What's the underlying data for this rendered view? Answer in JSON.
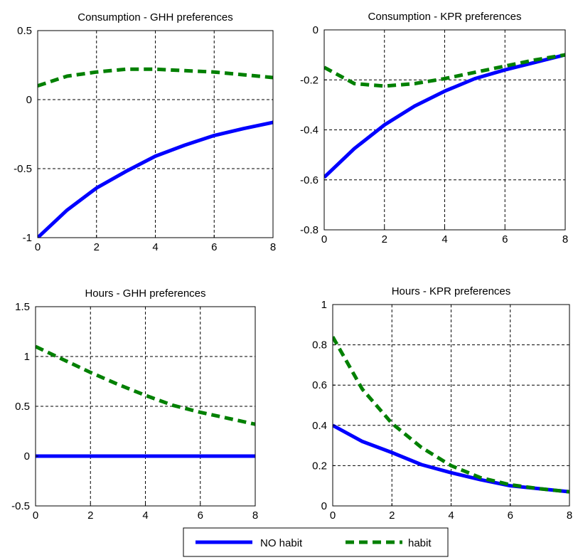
{
  "chart_data": [
    {
      "type": "line",
      "title": "Consumption  - GHH preferences",
      "xlabel": "",
      "ylabel": "",
      "xlim": [
        0,
        8
      ],
      "ylim": [
        -1,
        0.5
      ],
      "xticks": [
        0,
        2,
        4,
        6,
        8
      ],
      "yticks": [
        -1,
        -0.5,
        0,
        0.5
      ],
      "ytick_labels": [
        "-1",
        "-0.5",
        "0",
        "0.5"
      ],
      "grid": true,
      "x": [
        0,
        1,
        2,
        3,
        4,
        5,
        6,
        7,
        8
      ],
      "series": [
        {
          "name": "NO habit",
          "values": [
            -1.0,
            -0.8,
            -0.64,
            -0.52,
            -0.41,
            -0.33,
            -0.26,
            -0.21,
            -0.165
          ]
        },
        {
          "name": "habit",
          "values": [
            0.1,
            0.17,
            0.2,
            0.22,
            0.22,
            0.21,
            0.2,
            0.18,
            0.16
          ]
        }
      ]
    },
    {
      "type": "line",
      "title": "Consumption  - KPR preferences",
      "xlabel": "",
      "ylabel": "",
      "xlim": [
        0,
        8
      ],
      "ylim": [
        -0.8,
        0
      ],
      "xticks": [
        0,
        2,
        4,
        6,
        8
      ],
      "yticks": [
        -0.8,
        -0.6,
        -0.4,
        -0.2,
        0
      ],
      "ytick_labels": [
        "-0.8",
        "-0.6",
        "-0.4",
        "-0.2",
        "0"
      ],
      "grid": true,
      "x": [
        0,
        1,
        2,
        3,
        4,
        5,
        6,
        7,
        8
      ],
      "series": [
        {
          "name": "NO habit",
          "values": [
            -0.59,
            -0.475,
            -0.38,
            -0.305,
            -0.245,
            -0.195,
            -0.16,
            -0.13,
            -0.1
          ]
        },
        {
          "name": "habit",
          "values": [
            -0.15,
            -0.215,
            -0.225,
            -0.215,
            -0.195,
            -0.17,
            -0.145,
            -0.12,
            -0.1
          ]
        }
      ]
    },
    {
      "type": "line",
      "title": "Hours - GHH preferences",
      "xlabel": "",
      "ylabel": "",
      "xlim": [
        0,
        8
      ],
      "ylim": [
        -0.5,
        1.5
      ],
      "xticks": [
        0,
        2,
        4,
        6,
        8
      ],
      "yticks": [
        -0.5,
        0,
        0.5,
        1,
        1.5
      ],
      "ytick_labels": [
        "-0.5",
        "0",
        "0.5",
        "1",
        "1.5"
      ],
      "grid": true,
      "x": [
        0,
        1,
        2,
        3,
        4,
        5,
        6,
        7,
        8
      ],
      "series": [
        {
          "name": "NO habit",
          "values": [
            0,
            0,
            0,
            0,
            0,
            0,
            0,
            0,
            0
          ]
        },
        {
          "name": "habit",
          "values": [
            1.1,
            0.97,
            0.84,
            0.72,
            0.61,
            0.51,
            0.44,
            0.38,
            0.32
          ]
        }
      ]
    },
    {
      "type": "line",
      "title": "Hours - KPR preferences",
      "xlabel": "",
      "ylabel": "",
      "xlim": [
        0,
        8
      ],
      "ylim": [
        0,
        1
      ],
      "xticks": [
        0,
        2,
        4,
        6,
        8
      ],
      "yticks": [
        0,
        0.2,
        0.4,
        0.6,
        0.8,
        1
      ],
      "ytick_labels": [
        "0",
        "0.2",
        "0.4",
        "0.6",
        "0.8",
        "1"
      ],
      "grid": true,
      "x": [
        0,
        1,
        2,
        3,
        4,
        5,
        6,
        7,
        8
      ],
      "series": [
        {
          "name": "NO habit",
          "values": [
            0.4,
            0.32,
            0.265,
            0.205,
            0.165,
            0.13,
            0.1,
            0.085,
            0.07
          ]
        },
        {
          "name": "habit",
          "values": [
            0.84,
            0.58,
            0.41,
            0.29,
            0.2,
            0.14,
            0.105,
            0.085,
            0.07
          ]
        }
      ]
    }
  ],
  "legend": {
    "placement": "bottom-center",
    "entries": [
      {
        "label": "NO habit",
        "style": "solid",
        "color": "#0000ff"
      },
      {
        "label": "habit",
        "style": "dashed",
        "color": "#008000"
      }
    ]
  },
  "colors": {
    "no_habit": "#0000ff",
    "habit": "#008000"
  }
}
